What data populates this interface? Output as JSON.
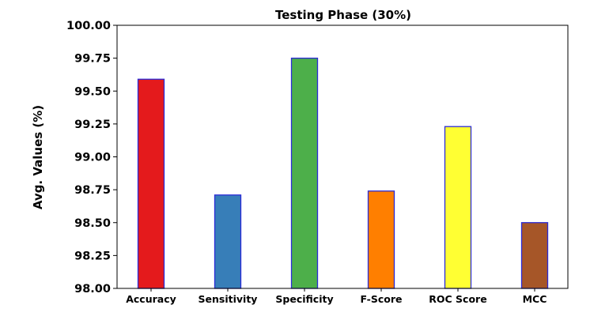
{
  "chart_data": {
    "type": "bar",
    "title": "Testing Phase (30%)",
    "xlabel": "",
    "ylabel": "Avg. Values (%)",
    "ylim": [
      98.0,
      100.0
    ],
    "yticks": [
      "98.00",
      "98.25",
      "98.50",
      "98.75",
      "99.00",
      "99.25",
      "99.50",
      "99.75",
      "100.00"
    ],
    "grid": false,
    "categories": [
      "Accuracy",
      "Sensitivity",
      "Specificity",
      "F-Score",
      "ROC Score",
      "MCC"
    ],
    "values": [
      99.59,
      98.71,
      99.75,
      98.74,
      99.23,
      98.5
    ],
    "colors": [
      "#e41a1c",
      "#377eb8",
      "#4daf4a",
      "#ff7f00",
      "#ffff33",
      "#a65628"
    ],
    "bar_edge_color": "#2b2bd6"
  }
}
